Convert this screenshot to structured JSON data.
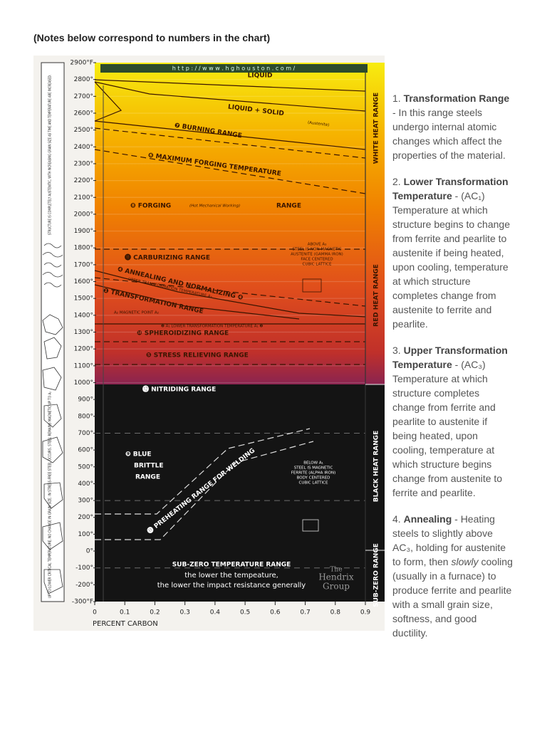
{
  "header": {
    "note": "(Notes below correspond to numbers in the chart)"
  },
  "figure": {
    "url": "h t t p : / / w w w . h g h o u s t o n . c o m /",
    "y_ticks": [
      "2900°F",
      "2800°",
      "2700°",
      "2600°",
      "2500°",
      "2400°",
      "2300°",
      "2200°",
      "2100°",
      "2000°",
      "1900°",
      "1800°",
      "1700°",
      "1600°",
      "1500°",
      "1400°",
      "1300°",
      "1200°",
      "1100°",
      "1000°",
      "900°",
      "800°",
      "700°",
      "600°",
      "500°",
      "400°",
      "300°",
      "200°",
      "100°",
      "0°",
      "-100°",
      "-200°",
      "-300°F"
    ],
    "x_ticks": [
      "0",
      "0.1",
      "0.2",
      "0.3",
      "0.4",
      "0.5",
      "0.6",
      "0.7",
      "0.8",
      "0.9"
    ],
    "x_label": "PERCENT CARBON",
    "side_note_upper": "STRUCTURE IS COMPLETELY AUSTENITIC, WITH INCREASING GRAIN SIZE AS TIME AND TEMPERATURE ARE INCREASED.",
    "side_note_lower": "UP TO LOWER CRITICAL TEMPERATURE, NO CHANGE IN GRAIN SIZE. IN STRESS-FREE STEEL OCCURS, STEEL REMAINS MAGNETIC UP TO A₂",
    "heat_ranges": [
      "WHITE HEAT RANGE",
      "RED HEAT RANGE",
      "BLACK HEAT RANGE",
      "SUB-ZERO RANGE"
    ],
    "labels": {
      "liquid": "LIQUID",
      "liquid_solid": "LIQUID + SOLID",
      "austenite": "(Austenite)",
      "burning": "❼ BURNING RANGE",
      "max_forging": "❻ MAXIMUM FORGING TEMPERATURE",
      "forging": "❽ FORGING",
      "forging_note": "(Hot Mechanical Working)",
      "forging_range": "RANGE",
      "above_a3": [
        "ABOVE A₃",
        "STEEL IS NON-MAGNETIC",
        "AUSTENITE (GAMMA IRON)",
        "FACE CENTERED",
        "CUBIC LATTICE"
      ],
      "carburizing": "⓫ CARBURIZING RANGE",
      "annealing": "❹ ANNEALING AND NORMALIZING ❹",
      "upper_a3": "UPPER TRANSFORMATION TEMPERATURE A₃",
      "transformation": "❶ TRANSFORMATION RANGE",
      "a2": "A₂ MAGNETIC POINT A₂",
      "a1": "❷ A₁ LOWER TRANSFORMATION TEMPERATURE A₁ ❷",
      "spheroidizing": "❿ SPHEROIDIZING RANGE",
      "stress_relieving": "❺ STRESS RELIEVING RANGE",
      "nitriding": "⓬ NITRIDING RANGE",
      "blue_brittle": [
        "❾ BLUE",
        "BRITTLE",
        "RANGE"
      ],
      "preheating": "⓫ PREHEATING RANGE FOR WELDING",
      "below_a1": [
        "BELOW A₁",
        "STEEL IS MAGNETIC",
        "FERRITE (ALPHA IRON)",
        "BODY CENTERED",
        "CUBIC LATTICE"
      ],
      "subzero": "SUB-ZERO TEMPERATURE RANGE",
      "subzero_line1": "the lower the tempeature,",
      "subzero_line2": "the lower the impact resistance generally",
      "hendrix": [
        "The",
        "Hendrix",
        "Group"
      ]
    }
  },
  "notes": [
    {
      "number": "1.",
      "title": "Transformation Range",
      "text": "- In this range steels undergo internal atomic changes which affect the properties of the material."
    },
    {
      "number": "2.",
      "title": "Lower Transformation Temperature",
      "text": "- (AC₁) Temperature at which structure begins to change from ferrite and pearlite to austenite if being heated, upon cooling, temperature at which structure completes change from austenite to ferrite and pearlite."
    },
    {
      "number": "3.",
      "title": "Upper Transformation Temperature",
      "text": "- (AC₃) Temperature at which structure completes change from ferrite and pearlite to austenite if being heated, upon cooling, temperature at which structure begins change from austenite to ferrite and pearlite."
    },
    {
      "number": "4.",
      "title": "Annealing",
      "text": "- Heating steels to slightly above AC₃, holding for austenite to form, then",
      "emphasis": "slowly",
      "text_end": "cooling (usually in a furnace) to produce ferrite and pearlite with a small grain size, softness, and good ductility."
    }
  ]
}
